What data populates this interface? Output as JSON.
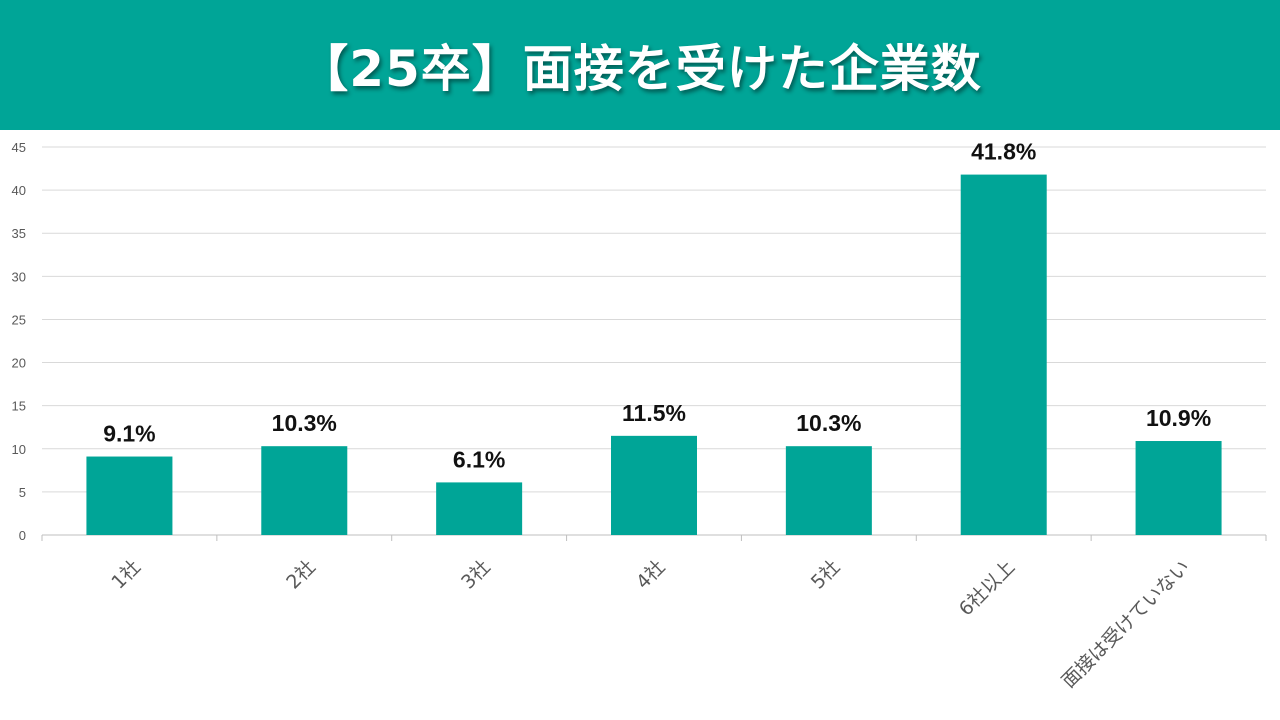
{
  "header": {
    "title": "【25卒】面接を受けた企業数"
  },
  "colors": {
    "header_bg": "#00a597",
    "bar": "#00a597",
    "grid": "#d9d9d9"
  },
  "chart_data": {
    "type": "bar",
    "title": "【25卒】面接を受けた企業数",
    "categories": [
      "1社",
      "2社",
      "3社",
      "4社",
      "5社",
      "6社以上",
      "面接は受けていない"
    ],
    "values": [
      9.1,
      10.3,
      6.1,
      11.5,
      10.3,
      41.8,
      10.9
    ],
    "data_labels": [
      "9.1%",
      "10.3%",
      "6.1%",
      "11.5%",
      "10.3%",
      "41.8%",
      "10.9%"
    ],
    "y_ticks": [
      0,
      5,
      10,
      15,
      20,
      25,
      30,
      35,
      40,
      45
    ],
    "ylim": [
      0,
      45
    ],
    "grid": true,
    "legend": "none",
    "xlabel": "",
    "ylabel": ""
  }
}
